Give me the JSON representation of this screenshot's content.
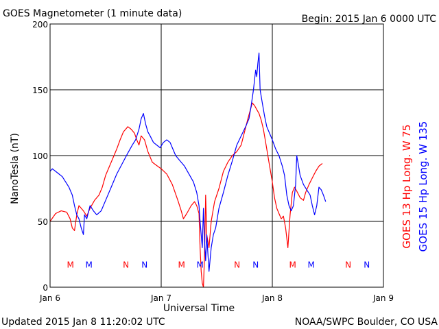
{
  "title": "GOES Magnetometer (1 minute data)",
  "begin_label": "Begin:  2015 Jan 6 0000 UTC",
  "footer_left": "Updated 2015 Jan  8 11:20:02 UTC",
  "footer_right": "NOAA/SWPC Boulder, CO USA",
  "colors": {
    "goes13": "#ff0000",
    "goes15": "#0000ff",
    "grid": "#000000"
  },
  "chart_data": {
    "type": "line",
    "title": "GOES Magnetometer (1 minute data)",
    "xlabel": "Universal Time",
    "ylabel": "NanoTesla (nT)",
    "xlim": [
      0,
      3
    ],
    "ylim": [
      0,
      200
    ],
    "x_ticks": [
      {
        "v": 0,
        "label": "Jan 6"
      },
      {
        "v": 1,
        "label": "Jan 7"
      },
      {
        "v": 2,
        "label": "Jan 8"
      },
      {
        "v": 3,
        "label": "Jan 9"
      }
    ],
    "y_ticks": [
      0,
      50,
      100,
      150,
      200
    ],
    "grid": true,
    "legend": "right-vertical",
    "series": [
      {
        "name": "GOES 13 Hp  Long. W 75",
        "color": "#ff0000",
        "points": [
          [
            0.0,
            50
          ],
          [
            0.05,
            56
          ],
          [
            0.1,
            58
          ],
          [
            0.15,
            57
          ],
          [
            0.18,
            52
          ],
          [
            0.2,
            45
          ],
          [
            0.22,
            43
          ],
          [
            0.24,
            55
          ],
          [
            0.26,
            62
          ],
          [
            0.3,
            58
          ],
          [
            0.33,
            54
          ],
          [
            0.36,
            60
          ],
          [
            0.4,
            66
          ],
          [
            0.44,
            70
          ],
          [
            0.47,
            76
          ],
          [
            0.5,
            85
          ],
          [
            0.55,
            95
          ],
          [
            0.6,
            105
          ],
          [
            0.63,
            112
          ],
          [
            0.66,
            118
          ],
          [
            0.7,
            122
          ],
          [
            0.73,
            120
          ],
          [
            0.76,
            117
          ],
          [
            0.78,
            112
          ],
          [
            0.8,
            108
          ],
          [
            0.82,
            115
          ],
          [
            0.85,
            112
          ],
          [
            0.88,
            103
          ],
          [
            0.92,
            95
          ],
          [
            0.95,
            93
          ],
          [
            1.0,
            90
          ],
          [
            1.05,
            86
          ],
          [
            1.1,
            78
          ],
          [
            1.15,
            66
          ],
          [
            1.18,
            58
          ],
          [
            1.2,
            52
          ],
          [
            1.23,
            56
          ],
          [
            1.27,
            62
          ],
          [
            1.3,
            65
          ],
          [
            1.32,
            62
          ],
          [
            1.34,
            56
          ],
          [
            1.35,
            30
          ],
          [
            1.36,
            12
          ],
          [
            1.37,
            3
          ],
          [
            1.38,
            0
          ],
          [
            1.39,
            25
          ],
          [
            1.4,
            70
          ],
          [
            1.41,
            40
          ],
          [
            1.43,
            30
          ],
          [
            1.45,
            50
          ],
          [
            1.48,
            65
          ],
          [
            1.52,
            75
          ],
          [
            1.56,
            88
          ],
          [
            1.6,
            95
          ],
          [
            1.64,
            100
          ],
          [
            1.68,
            103
          ],
          [
            1.72,
            108
          ],
          [
            1.75,
            118
          ],
          [
            1.78,
            128
          ],
          [
            1.8,
            134
          ],
          [
            1.82,
            140
          ],
          [
            1.84,
            138
          ],
          [
            1.86,
            135
          ],
          [
            1.88,
            132
          ],
          [
            1.9,
            127
          ],
          [
            1.92,
            120
          ],
          [
            1.94,
            110
          ],
          [
            1.97,
            95
          ],
          [
            2.0,
            80
          ],
          [
            2.02,
            68
          ],
          [
            2.04,
            60
          ],
          [
            2.06,
            56
          ],
          [
            2.08,
            52
          ],
          [
            2.1,
            54
          ],
          [
            2.12,
            45
          ],
          [
            2.14,
            30
          ],
          [
            2.16,
            55
          ],
          [
            2.18,
            72
          ],
          [
            2.2,
            76
          ],
          [
            2.22,
            73
          ],
          [
            2.25,
            68
          ],
          [
            2.28,
            66
          ],
          [
            2.3,
            72
          ],
          [
            2.33,
            78
          ],
          [
            2.36,
            83
          ],
          [
            2.39,
            88
          ],
          [
            2.42,
            92
          ],
          [
            2.45,
            94
          ]
        ]
      },
      {
        "name": "GOES 15 Hp  Long. W 135",
        "color": "#0000ff",
        "points": [
          [
            0.0,
            88
          ],
          [
            0.02,
            90
          ],
          [
            0.05,
            88
          ],
          [
            0.08,
            86
          ],
          [
            0.11,
            84
          ],
          [
            0.14,
            80
          ],
          [
            0.17,
            76
          ],
          [
            0.2,
            70
          ],
          [
            0.22,
            62
          ],
          [
            0.24,
            55
          ],
          [
            0.26,
            52
          ],
          [
            0.28,
            45
          ],
          [
            0.3,
            40
          ],
          [
            0.31,
            55
          ],
          [
            0.33,
            52
          ],
          [
            0.36,
            62
          ],
          [
            0.39,
            58
          ],
          [
            0.42,
            55
          ],
          [
            0.46,
            58
          ],
          [
            0.5,
            66
          ],
          [
            0.55,
            76
          ],
          [
            0.6,
            86
          ],
          [
            0.65,
            94
          ],
          [
            0.7,
            102
          ],
          [
            0.74,
            108
          ],
          [
            0.77,
            112
          ],
          [
            0.8,
            120
          ],
          [
            0.82,
            128
          ],
          [
            0.84,
            132
          ],
          [
            0.86,
            124
          ],
          [
            0.88,
            118
          ],
          [
            0.9,
            115
          ],
          [
            0.93,
            110
          ],
          [
            0.96,
            108
          ],
          [
            0.99,
            106
          ],
          [
            1.02,
            110
          ],
          [
            1.05,
            112
          ],
          [
            1.08,
            110
          ],
          [
            1.1,
            106
          ],
          [
            1.13,
            100
          ],
          [
            1.17,
            96
          ],
          [
            1.21,
            92
          ],
          [
            1.25,
            86
          ],
          [
            1.29,
            80
          ],
          [
            1.32,
            72
          ],
          [
            1.34,
            62
          ],
          [
            1.35,
            50
          ],
          [
            1.37,
            30
          ],
          [
            1.38,
            60
          ],
          [
            1.39,
            35
          ],
          [
            1.4,
            20
          ],
          [
            1.41,
            40
          ],
          [
            1.43,
            12
          ],
          [
            1.45,
            30
          ],
          [
            1.47,
            40
          ],
          [
            1.49,
            45
          ],
          [
            1.52,
            60
          ],
          [
            1.56,
            72
          ],
          [
            1.6,
            85
          ],
          [
            1.64,
            96
          ],
          [
            1.68,
            108
          ],
          [
            1.72,
            115
          ],
          [
            1.76,
            122
          ],
          [
            1.79,
            128
          ],
          [
            1.81,
            138
          ],
          [
            1.83,
            150
          ],
          [
            1.85,
            165
          ],
          [
            1.86,
            160
          ],
          [
            1.87,
            170
          ],
          [
            1.88,
            178
          ],
          [
            1.89,
            150
          ],
          [
            1.91,
            140
          ],
          [
            1.93,
            130
          ],
          [
            1.95,
            122
          ],
          [
            1.97,
            118
          ],
          [
            2.0,
            112
          ],
          [
            2.03,
            105
          ],
          [
            2.06,
            100
          ],
          [
            2.09,
            92
          ],
          [
            2.11,
            85
          ],
          [
            2.13,
            70
          ],
          [
            2.15,
            62
          ],
          [
            2.17,
            58
          ],
          [
            2.19,
            62
          ],
          [
            2.21,
            78
          ],
          [
            2.22,
            100
          ],
          [
            2.23,
            95
          ],
          [
            2.25,
            85
          ],
          [
            2.28,
            78
          ],
          [
            2.31,
            74
          ],
          [
            2.34,
            70
          ],
          [
            2.36,
            62
          ],
          [
            2.38,
            55
          ],
          [
            2.4,
            62
          ],
          [
            2.42,
            76
          ],
          [
            2.44,
            74
          ],
          [
            2.46,
            70
          ],
          [
            2.48,
            65
          ]
        ]
      }
    ],
    "markers": [
      {
        "x": 0.183,
        "label": "M",
        "series": 0
      },
      {
        "x": 0.35,
        "label": "M",
        "series": 1
      },
      {
        "x": 0.683,
        "label": "N",
        "series": 0
      },
      {
        "x": 0.85,
        "label": "N",
        "series": 1
      },
      {
        "x": 1.183,
        "label": "M",
        "series": 0
      },
      {
        "x": 1.35,
        "label": "M",
        "series": 1
      },
      {
        "x": 1.683,
        "label": "N",
        "series": 0
      },
      {
        "x": 1.85,
        "label": "N",
        "series": 1
      },
      {
        "x": 2.183,
        "label": "M",
        "series": 0
      },
      {
        "x": 2.35,
        "label": "M",
        "series": 1
      },
      {
        "x": 2.683,
        "label": "N",
        "series": 0
      },
      {
        "x": 2.85,
        "label": "N",
        "series": 1
      }
    ],
    "marker_level": 17
  }
}
